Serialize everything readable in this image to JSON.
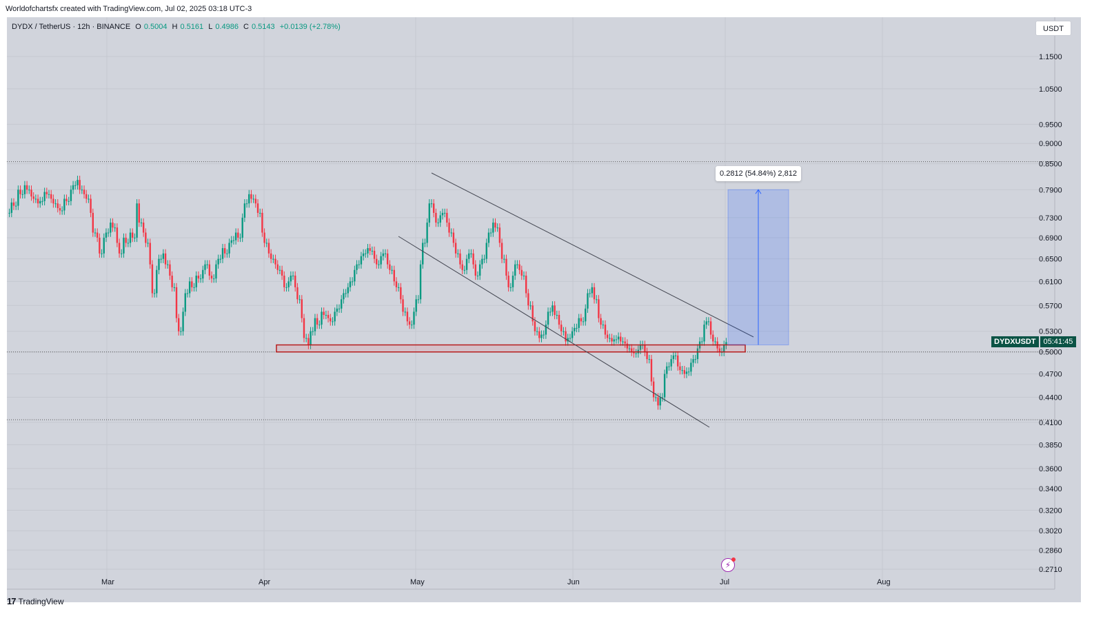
{
  "caption": "Worldofchartsfx created with TradingView.com, Jul 02, 2025 03:18 UTC-3",
  "symbol": {
    "name": "DYDX / TetherUS · 12h · BINANCE",
    "open_label": "O",
    "open": "0.5004",
    "high_label": "H",
    "high": "0.5161",
    "low_label": "L",
    "low": "0.4986",
    "close_label": "C",
    "close": "0.5143",
    "change": "+0.0139 (+2.78%)"
  },
  "currency_button": "USDT",
  "price_tag": {
    "symbol": "DYDXUSDT",
    "countdown": "05:41:45"
  },
  "measure_label": "0.2812 (54.84%) 2,812",
  "footer": {
    "brand": "TradingView",
    "brand_mark": "17"
  },
  "colors": {
    "up": "#089981",
    "down": "#f23645",
    "box_border": "#b71c1c",
    "measure_fill": "#2962ff",
    "background": "#d1d4dc"
  },
  "chart_data": {
    "type": "candlestick",
    "price_axis_labels": [
      "1.1500",
      "1.0500",
      "0.9500",
      "0.9000",
      "0.8500",
      "0.7900",
      "0.7300",
      "0.6900",
      "0.6500",
      "0.6100",
      "0.5700",
      "0.5300",
      "0.5000",
      "0.4700",
      "0.4400",
      "0.4100",
      "0.3850",
      "0.3600",
      "0.3400",
      "0.3200",
      "0.3020",
      "0.2860",
      "0.2710"
    ],
    "time_axis_labels": [
      "Mar",
      "Apr",
      "May",
      "Jun",
      "Jul",
      "Aug"
    ],
    "ohlc_path": [
      [
        0.74,
        0.762,
        0.755
      ],
      [
        0.755,
        0.79,
        0.78
      ],
      [
        0.78,
        0.8,
        0.79
      ],
      [
        0.79,
        0.775,
        0.77
      ],
      [
        0.77,
        0.76,
        0.765
      ],
      [
        0.765,
        0.785,
        0.78
      ],
      [
        0.78,
        0.77,
        0.76
      ],
      [
        0.76,
        0.75,
        0.745
      ],
      [
        0.745,
        0.77,
        0.765
      ],
      [
        0.765,
        0.79,
        0.8
      ],
      [
        0.8,
        0.812,
        0.79
      ],
      [
        0.79,
        0.78,
        0.77
      ],
      [
        0.77,
        0.74,
        0.7
      ],
      [
        0.7,
        0.69,
        0.66
      ],
      [
        0.66,
        0.69,
        0.7
      ],
      [
        0.7,
        0.72,
        0.71
      ],
      [
        0.71,
        0.68,
        0.66
      ],
      [
        0.66,
        0.69,
        0.68
      ],
      [
        0.68,
        0.7,
        0.69
      ],
      [
        0.69,
        0.76,
        0.72
      ],
      [
        0.72,
        0.7,
        0.68
      ],
      [
        0.68,
        0.64,
        0.59
      ],
      [
        0.59,
        0.63,
        0.65
      ],
      [
        0.65,
        0.66,
        0.64
      ],
      [
        0.64,
        0.62,
        0.6
      ],
      [
        0.6,
        0.55,
        0.53
      ],
      [
        0.53,
        0.56,
        0.59
      ],
      [
        0.59,
        0.61,
        0.6
      ],
      [
        0.6,
        0.62,
        0.615
      ],
      [
        0.615,
        0.63,
        0.64
      ],
      [
        0.64,
        0.62,
        0.615
      ],
      [
        0.615,
        0.64,
        0.65
      ],
      [
        0.65,
        0.67,
        0.66
      ],
      [
        0.66,
        0.68,
        0.685
      ],
      [
        0.685,
        0.7,
        0.69
      ],
      [
        0.69,
        0.73,
        0.76
      ],
      [
        0.76,
        0.78,
        0.77
      ],
      [
        0.77,
        0.76,
        0.74
      ],
      [
        0.74,
        0.7,
        0.68
      ],
      [
        0.68,
        0.66,
        0.65
      ],
      [
        0.65,
        0.64,
        0.63
      ],
      [
        0.63,
        0.62,
        0.6
      ],
      [
        0.6,
        0.61,
        0.62
      ],
      [
        0.62,
        0.6,
        0.58
      ],
      [
        0.58,
        0.55,
        0.52
      ],
      [
        0.52,
        0.51,
        0.53
      ],
      [
        0.53,
        0.55,
        0.54
      ],
      [
        0.54,
        0.56,
        0.555
      ],
      [
        0.555,
        0.55,
        0.545
      ],
      [
        0.545,
        0.56,
        0.565
      ],
      [
        0.565,
        0.58,
        0.59
      ],
      [
        0.59,
        0.6,
        0.61
      ],
      [
        0.61,
        0.63,
        0.64
      ],
      [
        0.64,
        0.655,
        0.66
      ],
      [
        0.66,
        0.67,
        0.665
      ],
      [
        0.665,
        0.65,
        0.64
      ],
      [
        0.64,
        0.655,
        0.66
      ],
      [
        0.66,
        0.64,
        0.63
      ],
      [
        0.63,
        0.61,
        0.6
      ],
      [
        0.6,
        0.58,
        0.56
      ],
      [
        0.56,
        0.545,
        0.54
      ],
      [
        0.54,
        0.56,
        0.58
      ],
      [
        0.58,
        0.64,
        0.68
      ],
      [
        0.68,
        0.72,
        0.76
      ],
      [
        0.76,
        0.74,
        0.72
      ],
      [
        0.72,
        0.735,
        0.74
      ],
      [
        0.74,
        0.72,
        0.7
      ],
      [
        0.7,
        0.68,
        0.66
      ],
      [
        0.66,
        0.64,
        0.63
      ],
      [
        0.63,
        0.65,
        0.66
      ],
      [
        0.66,
        0.64,
        0.62
      ],
      [
        0.62,
        0.64,
        0.65
      ],
      [
        0.65,
        0.68,
        0.7
      ],
      [
        0.7,
        0.72,
        0.71
      ],
      [
        0.71,
        0.68,
        0.65
      ],
      [
        0.65,
        0.62,
        0.6
      ],
      [
        0.6,
        0.62,
        0.64
      ],
      [
        0.64,
        0.63,
        0.62
      ],
      [
        0.62,
        0.59,
        0.57
      ],
      [
        0.57,
        0.545,
        0.53
      ],
      [
        0.53,
        0.52,
        0.525
      ],
      [
        0.525,
        0.54,
        0.56
      ],
      [
        0.56,
        0.57,
        0.555
      ],
      [
        0.555,
        0.54,
        0.53
      ],
      [
        0.53,
        0.515,
        0.52
      ],
      [
        0.52,
        0.53,
        0.535
      ],
      [
        0.535,
        0.55,
        0.545
      ],
      [
        0.545,
        0.565,
        0.59
      ],
      [
        0.59,
        0.6,
        0.58
      ],
      [
        0.58,
        0.55,
        0.54
      ],
      [
        0.54,
        0.525,
        0.52
      ],
      [
        0.52,
        0.515,
        0.518
      ],
      [
        0.518,
        0.522,
        0.515
      ],
      [
        0.515,
        0.512,
        0.505
      ],
      [
        0.505,
        0.5,
        0.498
      ],
      [
        0.498,
        0.503,
        0.51
      ],
      [
        0.51,
        0.5,
        0.49
      ],
      [
        0.49,
        0.46,
        0.44
      ],
      [
        0.44,
        0.43,
        0.44
      ],
      [
        0.44,
        0.47,
        0.48
      ],
      [
        0.48,
        0.49,
        0.495
      ],
      [
        0.495,
        0.48,
        0.475
      ],
      [
        0.475,
        0.47,
        0.473
      ],
      [
        0.473,
        0.485,
        0.49
      ],
      [
        0.49,
        0.505,
        0.515
      ],
      [
        0.515,
        0.54,
        0.545
      ],
      [
        0.545,
        0.525,
        0.515
      ],
      [
        0.515,
        0.505,
        0.5
      ],
      [
        0.5,
        0.51,
        0.514
      ]
    ],
    "levels": [
      0.855,
      0.5,
      0.413
    ],
    "support_zone": [
      0.5,
      0.51
    ],
    "measure": {
      "from": 0.51,
      "to": 0.79
    },
    "price_scale": "log"
  }
}
